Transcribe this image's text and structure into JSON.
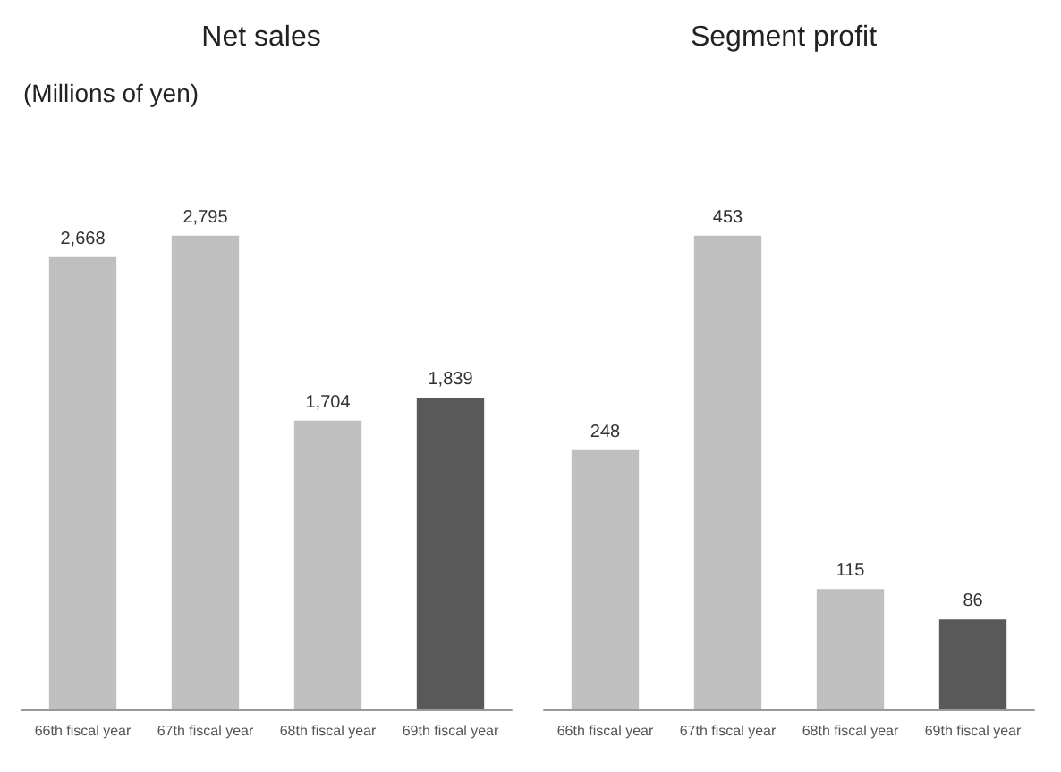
{
  "chart_data": [
    {
      "type": "bar",
      "title": "Net sales",
      "subtitle": "(Millions of yen)",
      "categories": [
        "66th fiscal year",
        "67th fiscal year",
        "68th fiscal year",
        "69th fiscal year"
      ],
      "values": [
        2668,
        2795,
        1704,
        1839
      ],
      "value_labels": [
        "2,668",
        "2,795",
        "1,704",
        "1,839"
      ],
      "colors": [
        "#bfbfbf",
        "#bfbfbf",
        "#bfbfbf",
        "#595959"
      ],
      "tick_labels": "x"
    },
    {
      "type": "bar",
      "title": "Segment profit",
      "categories": [
        "66th fiscal year",
        "67th fiscal year",
        "68th fiscal year",
        "69th fiscal year"
      ],
      "values": [
        248,
        453,
        115,
        86
      ],
      "colors": [
        "#bfbfbf",
        "#bfbfbf",
        "#bfbfbf",
        "#595959"
      ],
      "data_labels": true,
      "tick_labels": "x"
    }
  ]
}
